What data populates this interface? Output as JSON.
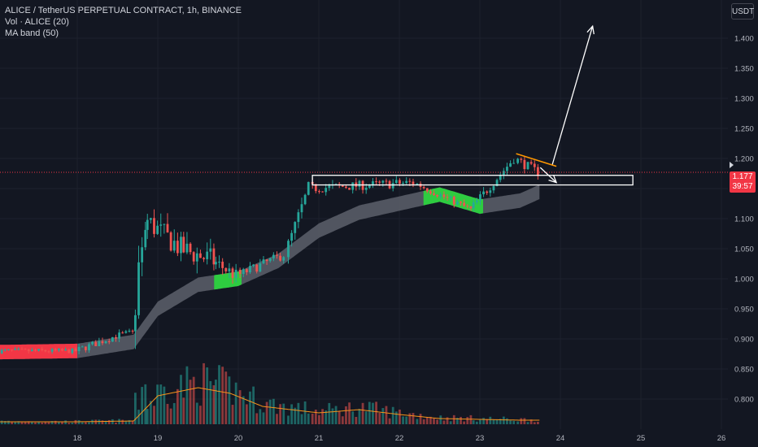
{
  "legend": {
    "title": "ALICE / TetherUS PERPETUAL CONTRACT, 1h, BINANCE",
    "volume": "Vol · ALICE (20)",
    "ma_band": "MA band (50)"
  },
  "unit_button": "USDT",
  "current_price": {
    "price": "1.177",
    "countdown": "39:57",
    "value": 1.177
  },
  "colors": {
    "background": "#131722",
    "up": "#26a69a",
    "down": "#ef5350",
    "band": "#5d606b",
    "band_bull": "#2ecc40",
    "band_bear": "#f23645",
    "volume_ma": "#f7931a",
    "annotation": "#ffffff",
    "trendline": "#ff9800",
    "price_line": "#f23645"
  },
  "chart_data": {
    "type": "candlestick",
    "title": "ALICE / TetherUS PERPETUAL CONTRACT, 1h, BINANCE",
    "y_ticks": [
      "1.400",
      "1.350",
      "1.300",
      "1.250",
      "1.200",
      "1.150",
      "1.100",
      "1.050",
      "1.000",
      "0.950",
      "0.900",
      "0.850",
      "0.800"
    ],
    "x_ticks": [
      "18",
      "19",
      "20",
      "21",
      "22",
      "23",
      "24",
      "25",
      "26"
    ],
    "ylim": [
      0.75,
      1.45
    ],
    "candle_segments": [
      {
        "from": "17",
        "to": "18",
        "start": 0.88,
        "end": 0.88,
        "volatility": 0.004
      },
      {
        "from": "18",
        "to": "18.5",
        "start": 0.88,
        "end": 0.905,
        "volatility": 0.006
      },
      {
        "from": "18.5",
        "to": "18.7",
        "start": 0.905,
        "end": 0.91,
        "volatility": 0.006
      },
      {
        "from": "18.7",
        "to": "18.85",
        "start": 0.91,
        "end": 1.1,
        "volatility": 0.03
      },
      {
        "from": "18.85",
        "to": "19.3",
        "start": 1.1,
        "end": 1.05,
        "volatility": 0.02
      },
      {
        "from": "19.3",
        "to": "19.7",
        "start": 1.05,
        "end": 1.03,
        "volatility": 0.02
      },
      {
        "from": "19.7",
        "to": "20.0",
        "start": 1.03,
        "end": 1.005,
        "volatility": 0.012
      },
      {
        "from": "20.0",
        "to": "20.6",
        "start": 1.005,
        "end": 1.04,
        "volatility": 0.008
      },
      {
        "from": "20.6",
        "to": "20.9",
        "start": 1.04,
        "end": 1.15,
        "volatility": 0.012
      },
      {
        "from": "20.9",
        "to": "22.2",
        "start": 1.15,
        "end": 1.16,
        "volatility": 0.008
      },
      {
        "from": "22.2",
        "to": "22.9",
        "start": 1.16,
        "end": 1.115,
        "volatility": 0.006
      },
      {
        "from": "22.9",
        "to": "23.45",
        "start": 1.115,
        "end": 1.2,
        "volatility": 0.008
      },
      {
        "from": "23.45",
        "to": "23.75",
        "start": 1.2,
        "end": 1.177,
        "volatility": 0.008
      }
    ],
    "ma_band": {
      "x": [
        "17",
        "18",
        "18.7",
        "19",
        "19.5",
        "20",
        "20.5",
        "21",
        "21.5",
        "22",
        "22.5",
        "23",
        "23.5",
        "23.75"
      ],
      "center": [
        0.878,
        0.88,
        0.895,
        0.95,
        0.99,
        1.0,
        1.03,
        1.08,
        1.11,
        1.125,
        1.14,
        1.12,
        1.13,
        1.145
      ],
      "half_width": 0.012,
      "colored_zones": [
        {
          "from": "0",
          "to": "18",
          "color": "bear"
        },
        {
          "from": "19.7",
          "to": "20.05",
          "color": "bull"
        },
        {
          "from": "22.3",
          "to": "23.05",
          "color": "bull"
        }
      ]
    },
    "volume": {
      "ma_x": [
        "17",
        "18",
        "18.7",
        "19",
        "19.5",
        "19.9",
        "20.3",
        "21",
        "21.5",
        "22",
        "22.5",
        "23",
        "23.5",
        "23.75"
      ],
      "ma_values": [
        0.03,
        0.03,
        0.04,
        0.35,
        0.45,
        0.38,
        0.22,
        0.14,
        0.18,
        0.12,
        0.07,
        0.06,
        0.05,
        0.05
      ]
    },
    "annotations": [
      {
        "type": "rectangle",
        "x": [
          "20.92",
          "24.9"
        ],
        "y": [
          1.172,
          1.156
        ]
      },
      {
        "type": "arrow",
        "from": {
          "x": "23.9",
          "y": 1.19
        },
        "to": {
          "x": "24.4",
          "y": 1.42
        }
      },
      {
        "type": "trendline",
        "from": {
          "x": "23.45",
          "y": 1.208
        },
        "to": {
          "x": "23.95",
          "y": 1.187
        }
      },
      {
        "type": "arrow",
        "from": {
          "x": "23.75",
          "y": 1.185
        },
        "to": {
          "x": "23.95",
          "y": 1.16
        }
      }
    ]
  }
}
